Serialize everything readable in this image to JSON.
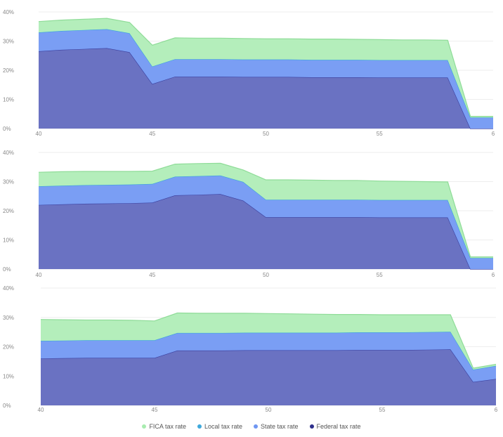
{
  "chart_data": [
    {
      "type": "area",
      "stacked": true,
      "x": [
        40,
        41,
        42,
        43,
        44,
        45,
        46,
        47,
        48,
        49,
        50,
        51,
        52,
        53,
        54,
        55,
        56,
        57,
        58,
        59,
        60
      ],
      "xticks": [
        "40",
        "45",
        "50",
        "55",
        "6"
      ],
      "ylim": [
        0,
        40
      ],
      "yticks": [
        "0%",
        "10%",
        "20%",
        "30%",
        "40%"
      ],
      "series": [
        {
          "name": "Federal tax rate",
          "values": [
            26.5,
            27,
            27.3,
            27.6,
            26.2,
            15.3,
            17.8,
            17.8,
            17.8,
            17.7,
            17.7,
            17.7,
            17.6,
            17.6,
            17.6,
            17.5,
            17.5,
            17.5,
            17.5,
            0,
            0
          ]
        },
        {
          "name": "State tax rate",
          "values": [
            6.5,
            6.5,
            6.5,
            6.5,
            6.5,
            6.0,
            6.0,
            6.0,
            6.0,
            6.0,
            6.0,
            6.0,
            6.0,
            6.0,
            6.0,
            6.0,
            6.0,
            6.0,
            6.0,
            3.8,
            3.8
          ]
        },
        {
          "name": "Local tax rate",
          "values": [
            0,
            0,
            0,
            0,
            0,
            0,
            0,
            0,
            0,
            0,
            0,
            0,
            0,
            0,
            0,
            0,
            0,
            0,
            0,
            0,
            0
          ]
        },
        {
          "name": "FICA tax rate",
          "values": [
            3.7,
            3.7,
            3.7,
            3.7,
            3.7,
            7.3,
            7.3,
            7.2,
            7.2,
            7.2,
            7.1,
            7.1,
            7.1,
            7.1,
            7.0,
            7.0,
            6.9,
            6.9,
            6.8,
            0.4,
            0.4
          ]
        }
      ]
    },
    {
      "type": "area",
      "stacked": true,
      "x": [
        40,
        41,
        42,
        43,
        44,
        45,
        46,
        47,
        48,
        49,
        50,
        51,
        52,
        53,
        54,
        55,
        56,
        57,
        58,
        59,
        60
      ],
      "xticks": [
        "40",
        "45",
        "50",
        "55",
        "6"
      ],
      "ylim": [
        0,
        40
      ],
      "yticks": [
        "0%",
        "10%",
        "20%",
        "30%",
        "40%"
      ],
      "series": [
        {
          "name": "Federal tax rate",
          "values": [
            22,
            22.2,
            22.4,
            22.5,
            22.6,
            22.8,
            25.3,
            25.5,
            25.7,
            23.5,
            17.8,
            17.8,
            17.8,
            17.8,
            17.8,
            17.7,
            17.7,
            17.7,
            17.7,
            0,
            0
          ]
        },
        {
          "name": "State tax rate",
          "values": [
            6.4,
            6.4,
            6.4,
            6.4,
            6.4,
            6.4,
            6.4,
            6.4,
            6.4,
            6.4,
            6.0,
            6.0,
            6.0,
            6.0,
            6.0,
            6.0,
            6.0,
            6.0,
            6.0,
            3.8,
            3.8
          ]
        },
        {
          "name": "Local tax rate",
          "values": [
            0,
            0,
            0,
            0,
            0,
            0,
            0,
            0,
            0,
            0,
            0,
            0,
            0,
            0,
            0,
            0,
            0,
            0,
            0,
            0,
            0
          ]
        },
        {
          "name": "FICA tax rate",
          "values": [
            4.8,
            4.8,
            4.7,
            4.6,
            4.5,
            4.4,
            4.3,
            4.3,
            4.2,
            4.1,
            6.8,
            6.8,
            6.7,
            6.6,
            6.6,
            6.5,
            6.4,
            6.3,
            6.2,
            0.4,
            0.4
          ]
        }
      ]
    },
    {
      "type": "area",
      "stacked": true,
      "x": [
        40,
        41,
        42,
        43,
        44,
        45,
        46,
        47,
        48,
        49,
        50,
        51,
        52,
        53,
        54,
        55,
        56,
        57,
        58,
        59,
        60
      ],
      "xticks": [
        "40",
        "45",
        "50",
        "55",
        "6"
      ],
      "ylim": [
        0,
        40
      ],
      "yticks": [
        "0%",
        "10%",
        "20%",
        "30%",
        "40%"
      ],
      "series": [
        {
          "name": "Federal tax rate",
          "values": [
            16,
            16.1,
            16.2,
            16.2,
            16.2,
            16.2,
            18.7,
            18.7,
            18.7,
            18.8,
            18.8,
            18.8,
            18.8,
            18.8,
            18.9,
            18.9,
            18.9,
            19.0,
            19.1,
            8.0,
            9.0
          ]
        },
        {
          "name": "State tax rate",
          "values": [
            6.0,
            6.0,
            6.0,
            6.0,
            6.0,
            6.0,
            6.0,
            6.0,
            6.0,
            6.0,
            6.0,
            6.0,
            6.0,
            6.0,
            6.0,
            6.0,
            6.0,
            6.0,
            6.0,
            4.2,
            4.5
          ]
        },
        {
          "name": "Local tax rate",
          "values": [
            0,
            0,
            0,
            0,
            0,
            0,
            0,
            0,
            0,
            0,
            0,
            0,
            0,
            0,
            0,
            0,
            0,
            0,
            0,
            0,
            0
          ]
        },
        {
          "name": "FICA tax rate",
          "values": [
            7.3,
            7.1,
            6.9,
            6.9,
            6.8,
            6.6,
            6.8,
            6.7,
            6.7,
            6.6,
            6.5,
            6.4,
            6.3,
            6.2,
            6.1,
            6.0,
            6.0,
            5.9,
            5.8,
            0.5,
            0.5
          ]
        }
      ]
    }
  ],
  "legend": [
    {
      "label": "FICA tax rate",
      "color": "#a9ecb0"
    },
    {
      "label": "Local tax rate",
      "color": "#3fa9dc"
    },
    {
      "label": "State tax rate",
      "color": "#6f96f2"
    },
    {
      "label": "Federal tax rate",
      "color": "#2e2f8c"
    }
  ],
  "colors": {
    "fica_fill": "#b4eebb",
    "fica_line": "#8fdc98",
    "state_fill": "#7a9ef4",
    "state_line": "#5a86ee",
    "local_fill": "#3fa9dc",
    "federal_fill": "#6a72c2",
    "federal_line": "#3a3f9e",
    "grid": "#eeeeee",
    "tick_text": "#888888"
  }
}
